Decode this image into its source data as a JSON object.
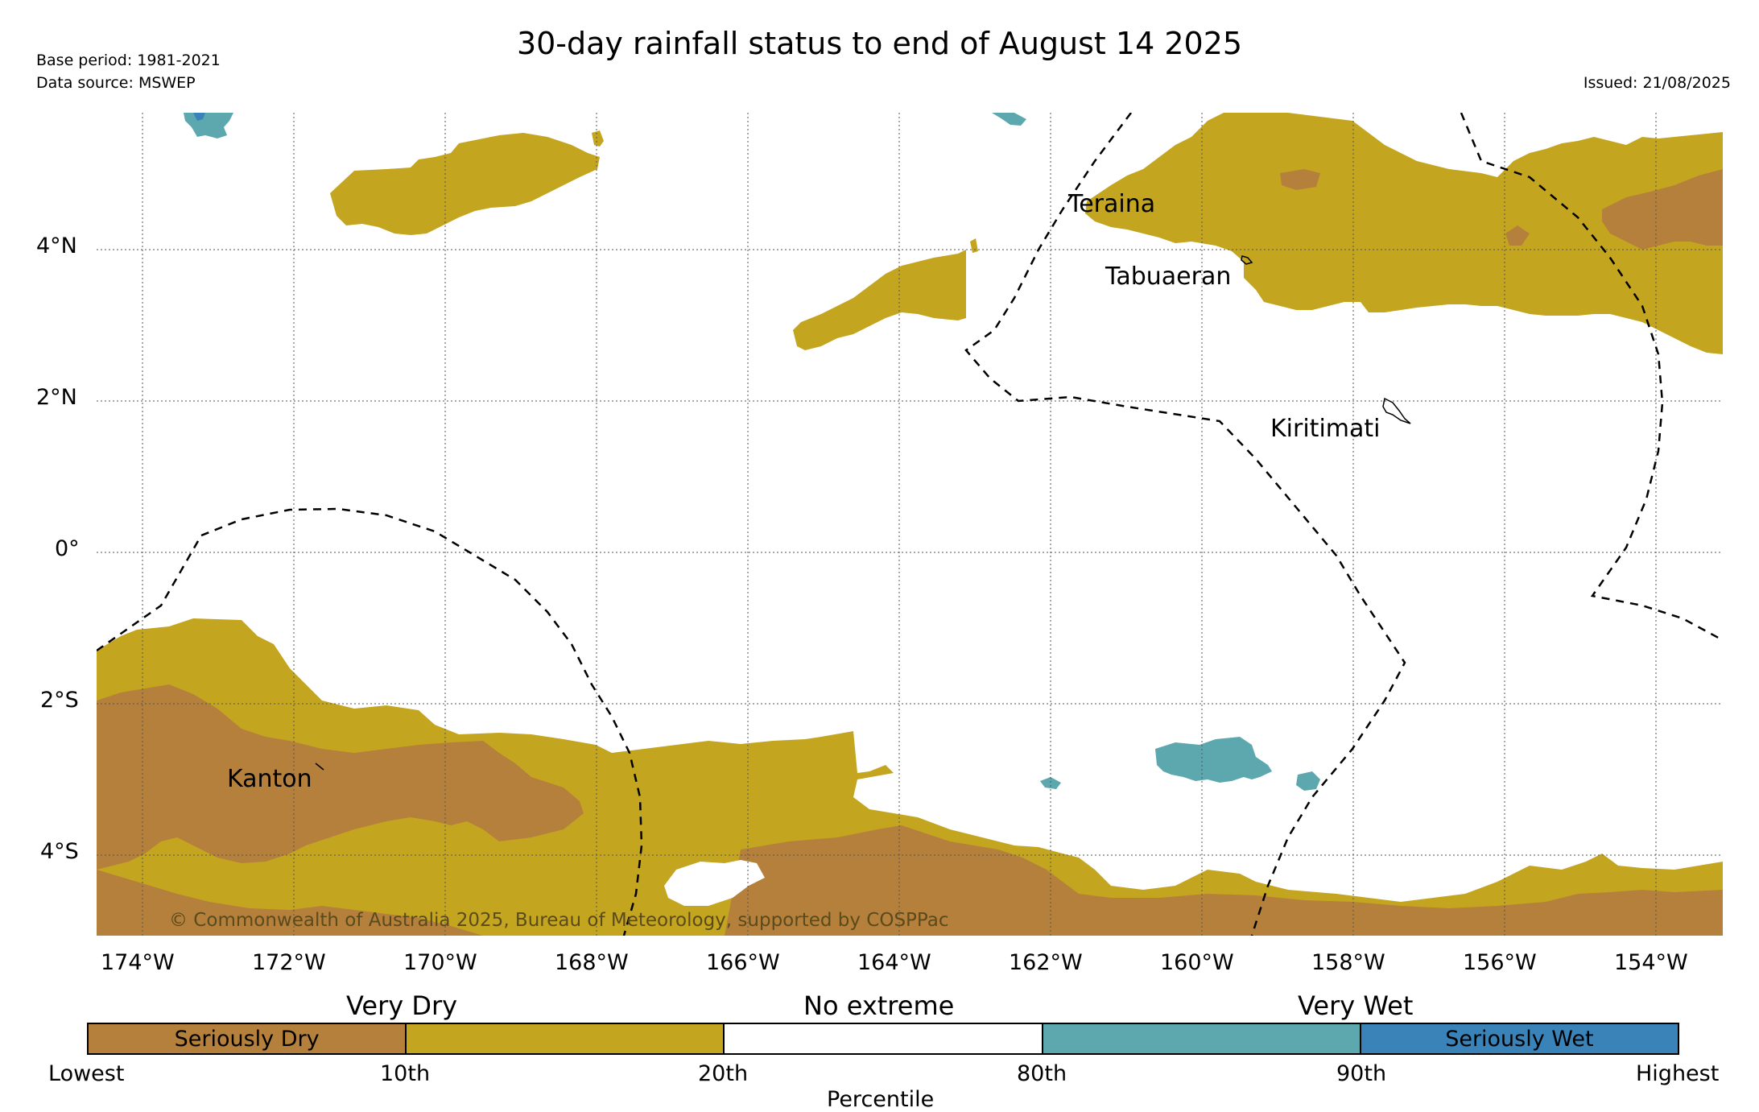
{
  "title": "30-day rainfall status to end of August 14 2025",
  "base_period": "Base period: 1981-2021",
  "data_source": "Data source: MSWEP",
  "issued": "Issued: 21/08/2025",
  "copyright": "© Commonwealth of Australia 2025, Bureau of Meteorology, supported by COSPPac",
  "lat_ticks": [
    "4°N",
    "2°N",
    "0°",
    "2°S",
    "4°S"
  ],
  "lon_ticks": [
    "174°W",
    "172°W",
    "170°W",
    "168°W",
    "166°W",
    "164°W",
    "162°W",
    "160°W",
    "158°W",
    "156°W",
    "154°W"
  ],
  "places": {
    "teraina": "Teraina",
    "tabuaeran": "Tabuaeran",
    "kiritimati": "Kiritimati",
    "kanton": "Kanton"
  },
  "legend": {
    "categories": {
      "very_dry": "Very Dry",
      "no_extreme": "No extreme",
      "very_wet": "Very Wet"
    },
    "bins": [
      {
        "label": "Seriously Dry",
        "color": "#b5803b"
      },
      {
        "label": "",
        "color": "#c4a520"
      },
      {
        "label": "",
        "color": "#ffffff"
      },
      {
        "label": "",
        "color": "#5ca8ae"
      },
      {
        "label": "Seriously Wet",
        "color": "#3a83b8"
      }
    ],
    "percentiles": [
      "Lowest",
      "10th",
      "20th",
      "80th",
      "90th",
      "Highest"
    ],
    "axis_label": "Percentile"
  },
  "colors": {
    "seriously_dry": "#b5803b",
    "very_dry": "#c4a520",
    "very_wet": "#5ca8ae",
    "seriously_wet": "#3a83b8"
  }
}
